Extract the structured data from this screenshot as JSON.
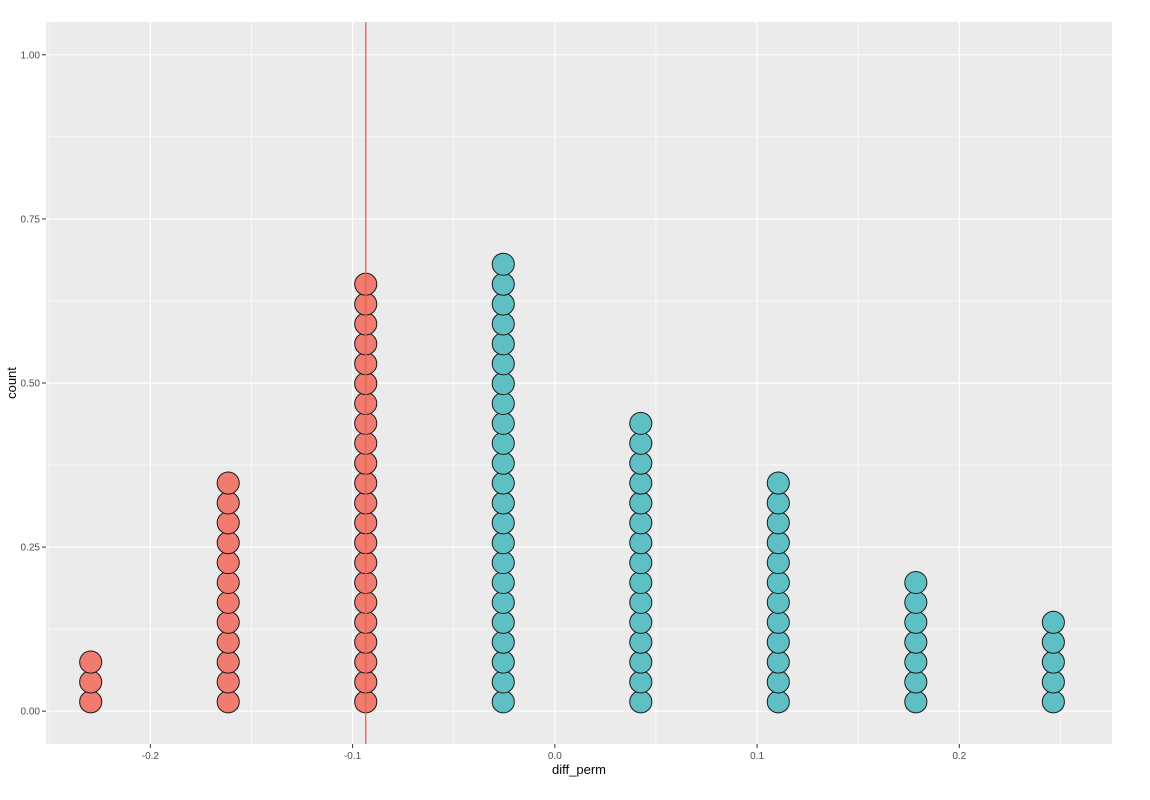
{
  "chart_data": {
    "type": "dotplot",
    "xlabel": "diff_perm",
    "ylabel": "count",
    "xlim": [
      -0.2516,
      0.2755
    ],
    "ylim": [
      -0.05,
      1.05
    ],
    "x_ticks": [
      {
        "value": -0.2,
        "label": "-0.2"
      },
      {
        "value": -0.1,
        "label": "-0.1"
      },
      {
        "value": 0.0,
        "label": "0.0"
      },
      {
        "value": 0.1,
        "label": "0.1"
      },
      {
        "value": 0.2,
        "label": "0.2"
      }
    ],
    "y_ticks": [
      {
        "value": 0.0,
        "label": "0.00"
      },
      {
        "value": 0.25,
        "label": "0.25"
      },
      {
        "value": 0.5,
        "label": "0.50"
      },
      {
        "value": 0.75,
        "label": "0.75"
      },
      {
        "value": 1.0,
        "label": "1.00"
      }
    ],
    "grid": true,
    "legend": "none",
    "observed_line": {
      "x": -0.0935,
      "color": "#e8604c"
    },
    "stacks": [
      {
        "x": -0.2295,
        "count": 3,
        "fill": "#f07b6e"
      },
      {
        "x": -0.1615,
        "count": 12,
        "fill": "#f07b6e"
      },
      {
        "x": -0.0935,
        "count": 22,
        "fill": "#f07b6e"
      },
      {
        "x": -0.0255,
        "count": 23,
        "fill": "#5ec0c4"
      },
      {
        "x": 0.0425,
        "count": 15,
        "fill": "#5ec0c4"
      },
      {
        "x": 0.1105,
        "count": 12,
        "fill": "#5ec0c4"
      },
      {
        "x": 0.1785,
        "count": 7,
        "fill": "#5ec0c4"
      },
      {
        "x": 0.2465,
        "count": 5,
        "fill": "#5ec0c4"
      }
    ],
    "colors": {
      "panel": "#ebebeb",
      "grid": "#ffffff",
      "negative": "#f07b6e",
      "positive": "#5ec0c4",
      "outline": "#1a1a1a"
    }
  }
}
